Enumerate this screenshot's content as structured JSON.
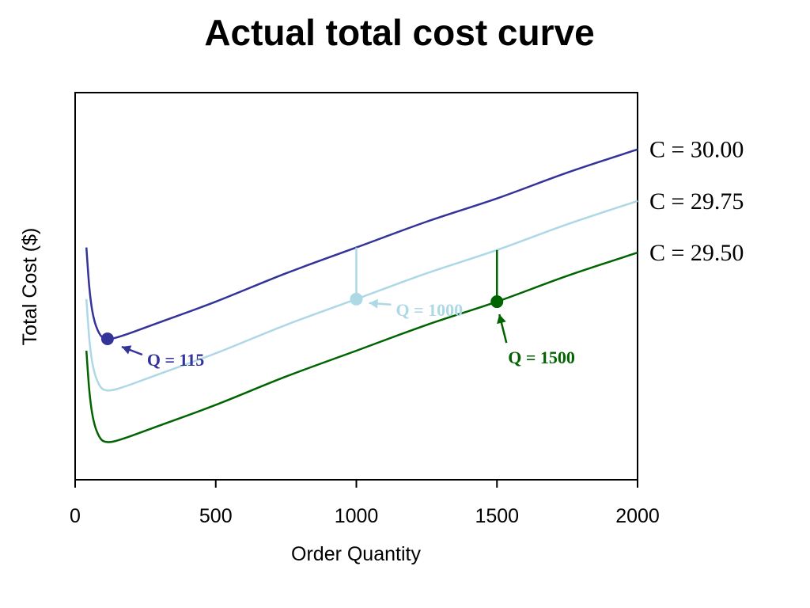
{
  "chart_data": {
    "type": "line",
    "title": "Actual total cost curve",
    "xlabel": "Order Quantity",
    "ylabel": "Total Cost ($)",
    "xlim": [
      0,
      2000
    ],
    "x_ticks": [
      "0",
      "500",
      "1000",
      "1500",
      "2000"
    ],
    "y_ticks_shown": false,
    "grid": false,
    "series": [
      {
        "name": "C = 30.00",
        "color": "#333399",
        "x": [
          40,
          50,
          60,
          70,
          80,
          90,
          100,
          115,
          130,
          150,
          200,
          300,
          500,
          750,
          1000,
          1250,
          1500,
          1750,
          2000
        ],
        "values": [
          97.0,
          95.5,
          94.6,
          94.1,
          93.8,
          93.6,
          93.5,
          93.46,
          93.47,
          93.52,
          93.7,
          94.1,
          94.9,
          96.0,
          97.0,
          98.0,
          98.9,
          99.9,
          100.8
        ]
      },
      {
        "name": "C = 29.75",
        "color": "#add8e6",
        "x": [
          40,
          50,
          60,
          70,
          80,
          90,
          100,
          115,
          130,
          150,
          200,
          300,
          500,
          750,
          1000,
          1250,
          1500,
          1750,
          2000
        ],
        "values": [
          95.0,
          93.5,
          92.6,
          92.1,
          91.8,
          91.6,
          91.5,
          91.46,
          91.47,
          91.52,
          91.7,
          92.1,
          92.9,
          94.0,
          95.0,
          96.0,
          96.9,
          97.9,
          98.8
        ]
      },
      {
        "name": "C = 29.50",
        "color": "#006400",
        "x": [
          40,
          50,
          60,
          70,
          80,
          90,
          100,
          115,
          130,
          150,
          200,
          300,
          500,
          750,
          1000,
          1250,
          1500,
          1750,
          2000
        ],
        "values": [
          93.0,
          91.5,
          90.6,
          90.1,
          89.8,
          89.6,
          89.5,
          89.46,
          89.47,
          89.52,
          89.7,
          90.1,
          90.9,
          92.0,
          93.0,
          94.0,
          94.9,
          95.9,
          96.8
        ]
      }
    ],
    "highlighted_points": [
      {
        "label": "Q = 115",
        "series": 0,
        "x": 115,
        "color": "#333399"
      },
      {
        "label": "Q = 1000",
        "series": 1,
        "x": 1000,
        "color": "#add8e6"
      },
      {
        "label": "Q = 1500",
        "series": 2,
        "x": 1500,
        "color": "#006400"
      }
    ],
    "ylim": [
      88,
      103
    ]
  }
}
